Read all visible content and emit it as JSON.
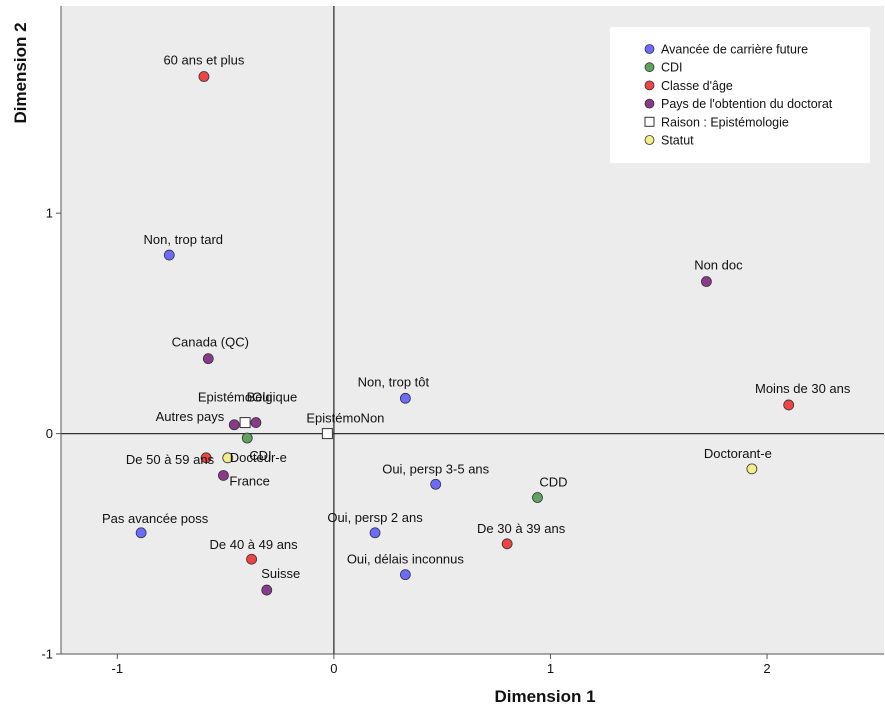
{
  "chart_data": {
    "type": "scatter",
    "xlabel": "Dimension 1",
    "ylabel": "Dimension 2",
    "xlim": [
      -1.26,
      2.54
    ],
    "ylim": [
      -1.0,
      1.94
    ],
    "xticks": [
      -1,
      0,
      1,
      2
    ],
    "yticks": [
      -1,
      0,
      1
    ],
    "xtick_labels": [
      "-1",
      "0",
      "1",
      "2"
    ],
    "ytick_labels": [
      "-1",
      "0",
      "1"
    ],
    "reference_lines": {
      "x": 0,
      "y": 0
    },
    "legend_position": "top-right",
    "series": [
      {
        "name": "Avancée de carrière future",
        "color": "#6b6bff",
        "marker": "circle",
        "points": [
          {
            "label": "Non, trop tard",
            "x": -0.76,
            "y": 0.81
          },
          {
            "label": "Non, trop tôt",
            "x": 0.33,
            "y": 0.16
          },
          {
            "label": "Oui, persp 3-5 ans",
            "x": 0.47,
            "y": -0.23
          },
          {
            "label": "Oui, persp 2 ans",
            "x": 0.19,
            "y": -0.45
          },
          {
            "label": "Oui, délais inconnus",
            "x": 0.33,
            "y": -0.64
          },
          {
            "label": "Pas avancée poss",
            "x": -0.89,
            "y": -0.45
          }
        ]
      },
      {
        "name": "CDI",
        "color": "#5ea35e",
        "marker": "circle",
        "points": [
          {
            "label": "CDD",
            "x": 0.94,
            "y": -0.29
          },
          {
            "label": "CDI",
            "x": -0.4,
            "y": -0.02
          }
        ]
      },
      {
        "name": "Classe d'âge",
        "color": "#ef4444",
        "marker": "circle",
        "points": [
          {
            "label": "60 ans et plus",
            "x": -0.6,
            "y": 1.62
          },
          {
            "label": "Moins de 30 ans",
            "x": 2.1,
            "y": 0.13
          },
          {
            "label": "De 30 à 39 ans",
            "x": 0.8,
            "y": -0.5
          },
          {
            "label": "De 40 à 49 ans",
            "x": -0.38,
            "y": -0.57
          },
          {
            "label": "De 50 à 59 ans",
            "x": -0.59,
            "y": -0.11
          }
        ]
      },
      {
        "name": "Pays de l'obtention du doctorat",
        "color": "#8a3a8a",
        "marker": "circle",
        "points": [
          {
            "label": "Non doc",
            "x": 1.72,
            "y": 0.69
          },
          {
            "label": "Canada (QC)",
            "x": -0.58,
            "y": 0.34
          },
          {
            "label": "Belgique",
            "x": -0.36,
            "y": 0.05
          },
          {
            "label": "Autres pays",
            "x": -0.46,
            "y": 0.04
          },
          {
            "label": "France",
            "x": -0.51,
            "y": -0.19
          },
          {
            "label": "Suisse",
            "x": -0.31,
            "y": -0.71
          }
        ]
      },
      {
        "name": "Raison : Epistémologie",
        "color": "#ffffff",
        "marker": "square",
        "points": [
          {
            "label": "EpistémoOui",
            "x": -0.41,
            "y": 0.05
          },
          {
            "label": "EpistémoNon",
            "x": -0.03,
            "y": 0.0
          }
        ]
      },
      {
        "name": "Statut",
        "color": "#f3ee85",
        "marker": "circle",
        "points": [
          {
            "label": "Doctorant-e",
            "x": 1.93,
            "y": -0.16
          },
          {
            "label": "Docteur-e",
            "x": -0.49,
            "y": -0.11
          }
        ]
      }
    ]
  },
  "colors": {
    "plot_background": "#ececec",
    "legend_background": "#ffffff",
    "axis_line": "#333333"
  }
}
